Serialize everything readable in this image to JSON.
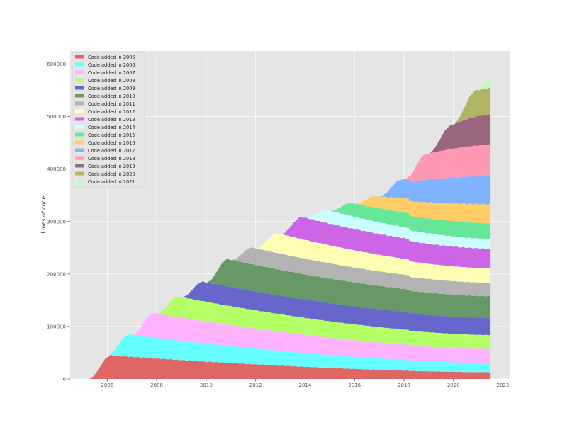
{
  "chart_data": {
    "type": "area",
    "title": "",
    "xlabel": "",
    "ylabel": "Lines of code",
    "xlim": [
      2004.5,
      2022.3
    ],
    "ylim": [
      0,
      625000
    ],
    "grid": true,
    "legend_position": "top-left",
    "x_ticks": [
      2006,
      2008,
      2010,
      2012,
      2014,
      2016,
      2018,
      2020,
      2022
    ],
    "y_ticks": [
      0,
      100000,
      200000,
      300000,
      400000,
      500000,
      600000
    ],
    "x_tick_labels": [
      "2006",
      "2008",
      "2010",
      "2012",
      "2014",
      "2016",
      "2018",
      "2020",
      "2022"
    ],
    "y_tick_labels": [
      "0",
      "100000",
      "200000",
      "300000",
      "400000",
      "500000",
      "600000"
    ],
    "end_year": 2021.5,
    "series": [
      {
        "name": "Code added in 2005",
        "color": "#e06666",
        "start": 2005.25,
        "peak": 45000,
        "end": 13000
      },
      {
        "name": "Code added in 2006",
        "color": "#66ffff",
        "start": 2006.0,
        "peak": 42000,
        "end": 18000
      },
      {
        "name": "Code added in 2007",
        "color": "#ffb3ff",
        "start": 2007.0,
        "peak": 47000,
        "end": 27000
      },
      {
        "name": "Code added in 2008",
        "color": "#b3ff66",
        "start": 2008.0,
        "peak": 39000,
        "end": 27000
      },
      {
        "name": "Code added in 2009",
        "color": "#6666cc",
        "start": 2009.0,
        "peak": 37000,
        "end": 33000
      },
      {
        "name": "Code added in 2010",
        "color": "#669966",
        "start": 2010.0,
        "peak": 52000,
        "end": 42000
      },
      {
        "name": "Code added in 2011",
        "color": "#b3b3b3",
        "start": 2011.0,
        "peak": 32000,
        "end": 26000
      },
      {
        "name": "Code added in 2012",
        "color": "#ffffb3",
        "start": 2012.0,
        "peak": 38000,
        "end": 28000
      },
      {
        "name": "Code added in 2013",
        "color": "#cc66e6",
        "start": 2013.0,
        "peak": 42000,
        "end": 38000
      },
      {
        "name": "Code added in 2014",
        "color": "#ccffff",
        "start": 2014.0,
        "peak": 25000,
        "end": 19000
      },
      {
        "name": "Code added in 2015",
        "color": "#66e699",
        "start": 2015.0,
        "peak": 25000,
        "end": 30000
      },
      {
        "name": "Code added in 2016",
        "color": "#ffcc66",
        "start": 2016.0,
        "peak": 22000,
        "end": 37000
      },
      {
        "name": "Code added in 2017",
        "color": "#80b3ff",
        "start": 2017.0,
        "peak": 35000,
        "end": 55000
      },
      {
        "name": "Code added in 2018",
        "color": "#ff99b3",
        "start": 2018.0,
        "peak": 50000,
        "end": 60000
      },
      {
        "name": "Code added in 2019",
        "color": "#996680",
        "start": 2019.0,
        "peak": 45000,
        "end": 58000
      },
      {
        "name": "Code added in 2020",
        "color": "#b3b366",
        "start": 2020.0,
        "peak": 50000,
        "end": 50000
      },
      {
        "name": "Code added in 2021",
        "color": "#b3ffb3",
        "start": 2021.0,
        "peak": 35000,
        "end": 35000
      }
    ]
  }
}
